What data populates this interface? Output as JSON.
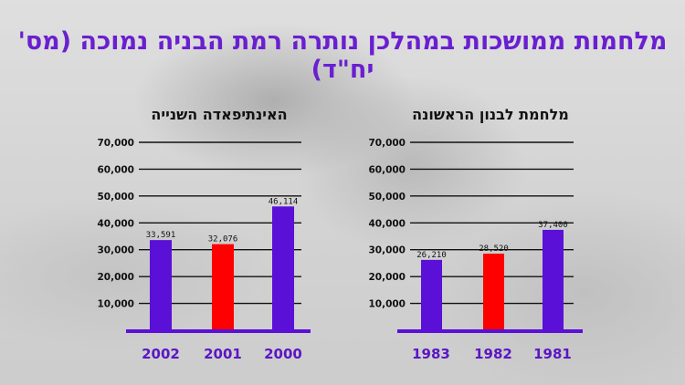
{
  "title": "מלחמות ממושכות במהלכן נותרה רמת הבניה נמוכה (מס' יח\"ד)",
  "colors": {
    "purple": "#5a10d6",
    "red": "#ff0000",
    "accent_text": "#6a1fd0"
  },
  "chart_data": [
    {
      "type": "bar",
      "title": "האינתיפאדה השנייה",
      "categories": [
        "2002",
        "2001",
        "2000"
      ],
      "values": [
        33591,
        32076,
        46114
      ],
      "value_labels": [
        "33,591",
        "32,076",
        "46,114"
      ],
      "bar_colors": [
        "#5a10d6",
        "#ff0000",
        "#5a10d6"
      ],
      "ylim": [
        0,
        70000
      ],
      "yticks": [
        10000,
        20000,
        30000,
        40000,
        50000,
        60000,
        70000
      ],
      "ytick_labels": [
        "10,000",
        "20,000",
        "30,000",
        "40,000",
        "50,000",
        "60,000",
        "70,000"
      ],
      "grid": true
    },
    {
      "type": "bar",
      "title": "מלחמת לבנון הראשונה",
      "categories": [
        "1983",
        "1982",
        "1981"
      ],
      "values": [
        26210,
        28520,
        37400
      ],
      "value_labels": [
        "26,210",
        "28,520",
        "37,400"
      ],
      "bar_colors": [
        "#5a10d6",
        "#ff0000",
        "#5a10d6"
      ],
      "ylim": [
        0,
        70000
      ],
      "yticks": [
        10000,
        20000,
        30000,
        40000,
        50000,
        60000,
        70000
      ],
      "ytick_labels": [
        "10,000",
        "20,000",
        "30,000",
        "40,000",
        "50,000",
        "60,000",
        "70,000"
      ],
      "grid": true
    }
  ]
}
